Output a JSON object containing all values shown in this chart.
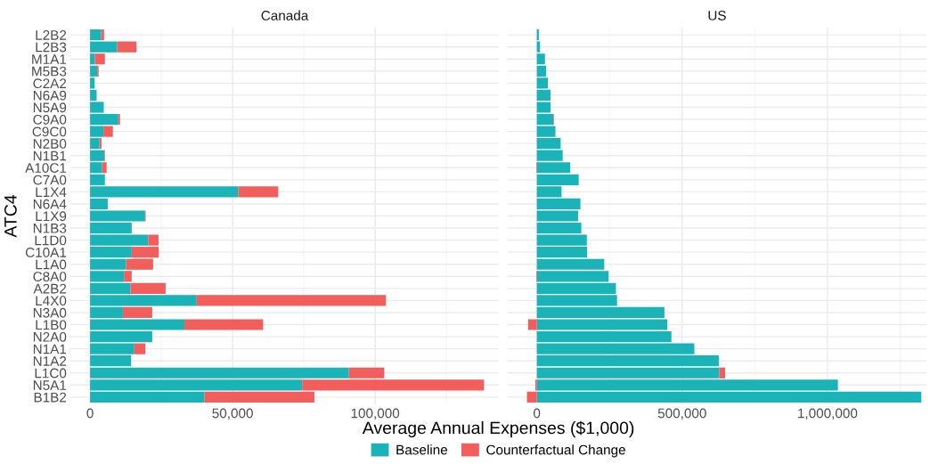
{
  "chart_data": [
    {
      "type": "bar",
      "orientation": "horizontal",
      "stacked": true,
      "title": "Canada",
      "xlabel": "Average Annual Expenses ($1,000)",
      "ylabel": "ATC4",
      "legend": "bottom",
      "grid": true,
      "categories": [
        "L2B2",
        "L2B3",
        "M1A1",
        "M5B3",
        "C2A2",
        "N6A9",
        "N5A9",
        "C9A0",
        "C9C0",
        "N2B0",
        "N1B1",
        "A10C1",
        "C7A0",
        "L1X4",
        "N6A4",
        "L1X9",
        "N1B3",
        "L1D0",
        "C10A1",
        "L1A0",
        "C8A0",
        "A2B2",
        "L4X0",
        "N3A0",
        "L1B0",
        "N2A0",
        "N1A1",
        "N1A2",
        "L1C0",
        "N5A1",
        "B1B2"
      ],
      "xlim": [
        -6900,
        143400
      ],
      "xticks": [
        {
          "value": 0,
          "label": "0"
        },
        {
          "value": 50000,
          "label": "50,000"
        },
        {
          "value": 100000,
          "label": "100,000"
        }
      ],
      "series": [
        {
          "name": "Baseline",
          "color": "#19b3b8",
          "values": [
            3900,
            9500,
            1700,
            2500,
            1600,
            2300,
            4800,
            9900,
            4700,
            3300,
            5000,
            4200,
            5200,
            52000,
            6200,
            19300,
            14600,
            20400,
            14600,
            12600,
            11900,
            14200,
            37400,
            11500,
            33100,
            21800,
            15500,
            14400,
            90800,
            74400,
            40100
          ]
        },
        {
          "name": "Counterfactual Change",
          "color": "#f25e5b",
          "values": [
            1000,
            6800,
            3500,
            500,
            0,
            0,
            0,
            600,
            3300,
            700,
            200,
            1600,
            0,
            14000,
            0,
            200,
            0,
            3600,
            9500,
            9500,
            2700,
            12300,
            66400,
            10300,
            27600,
            0,
            3900,
            0,
            12400,
            63800,
            38600
          ]
        }
      ]
    },
    {
      "type": "bar",
      "orientation": "horizontal",
      "stacked": true,
      "title": "US",
      "grid": true,
      "tick_labels": "x",
      "categories": [
        null,
        null,
        null,
        null,
        null,
        null,
        null,
        null,
        null,
        null,
        null,
        null,
        null,
        null,
        null,
        null,
        null,
        null,
        null,
        null,
        null,
        null,
        null,
        null,
        null,
        null,
        null,
        null,
        null,
        null,
        null
      ],
      "xlim": [
        -100000,
        1340000
      ],
      "xticks": [
        {
          "value": 0,
          "label": "0"
        },
        {
          "value": 500000,
          "label": "500,000"
        },
        {
          "value": 1000000,
          "label": "1,000,000"
        }
      ],
      "series": [
        {
          "color": "#19b3b8",
          "values": [
            7000,
            11000,
            28000,
            32000,
            38000,
            47000,
            47000,
            57000,
            64000,
            82000,
            89000,
            115000,
            144000,
            85000,
            150000,
            142000,
            153000,
            172000,
            173000,
            232000,
            247000,
            272000,
            276000,
            439000,
            449000,
            463000,
            542000,
            626000,
            628000,
            1036000,
            1323000
          ]
        },
        {
          "color": "#f25e5b",
          "values": [
            0,
            0,
            0,
            0,
            0,
            0,
            0,
            2000,
            0,
            0,
            0,
            -2000,
            0,
            0,
            0,
            0,
            0,
            0,
            0,
            null,
            -2000,
            null,
            0,
            0,
            -30000,
            0,
            null,
            0,
            20000,
            -5000,
            -34000
          ]
        }
      ]
    }
  ]
}
